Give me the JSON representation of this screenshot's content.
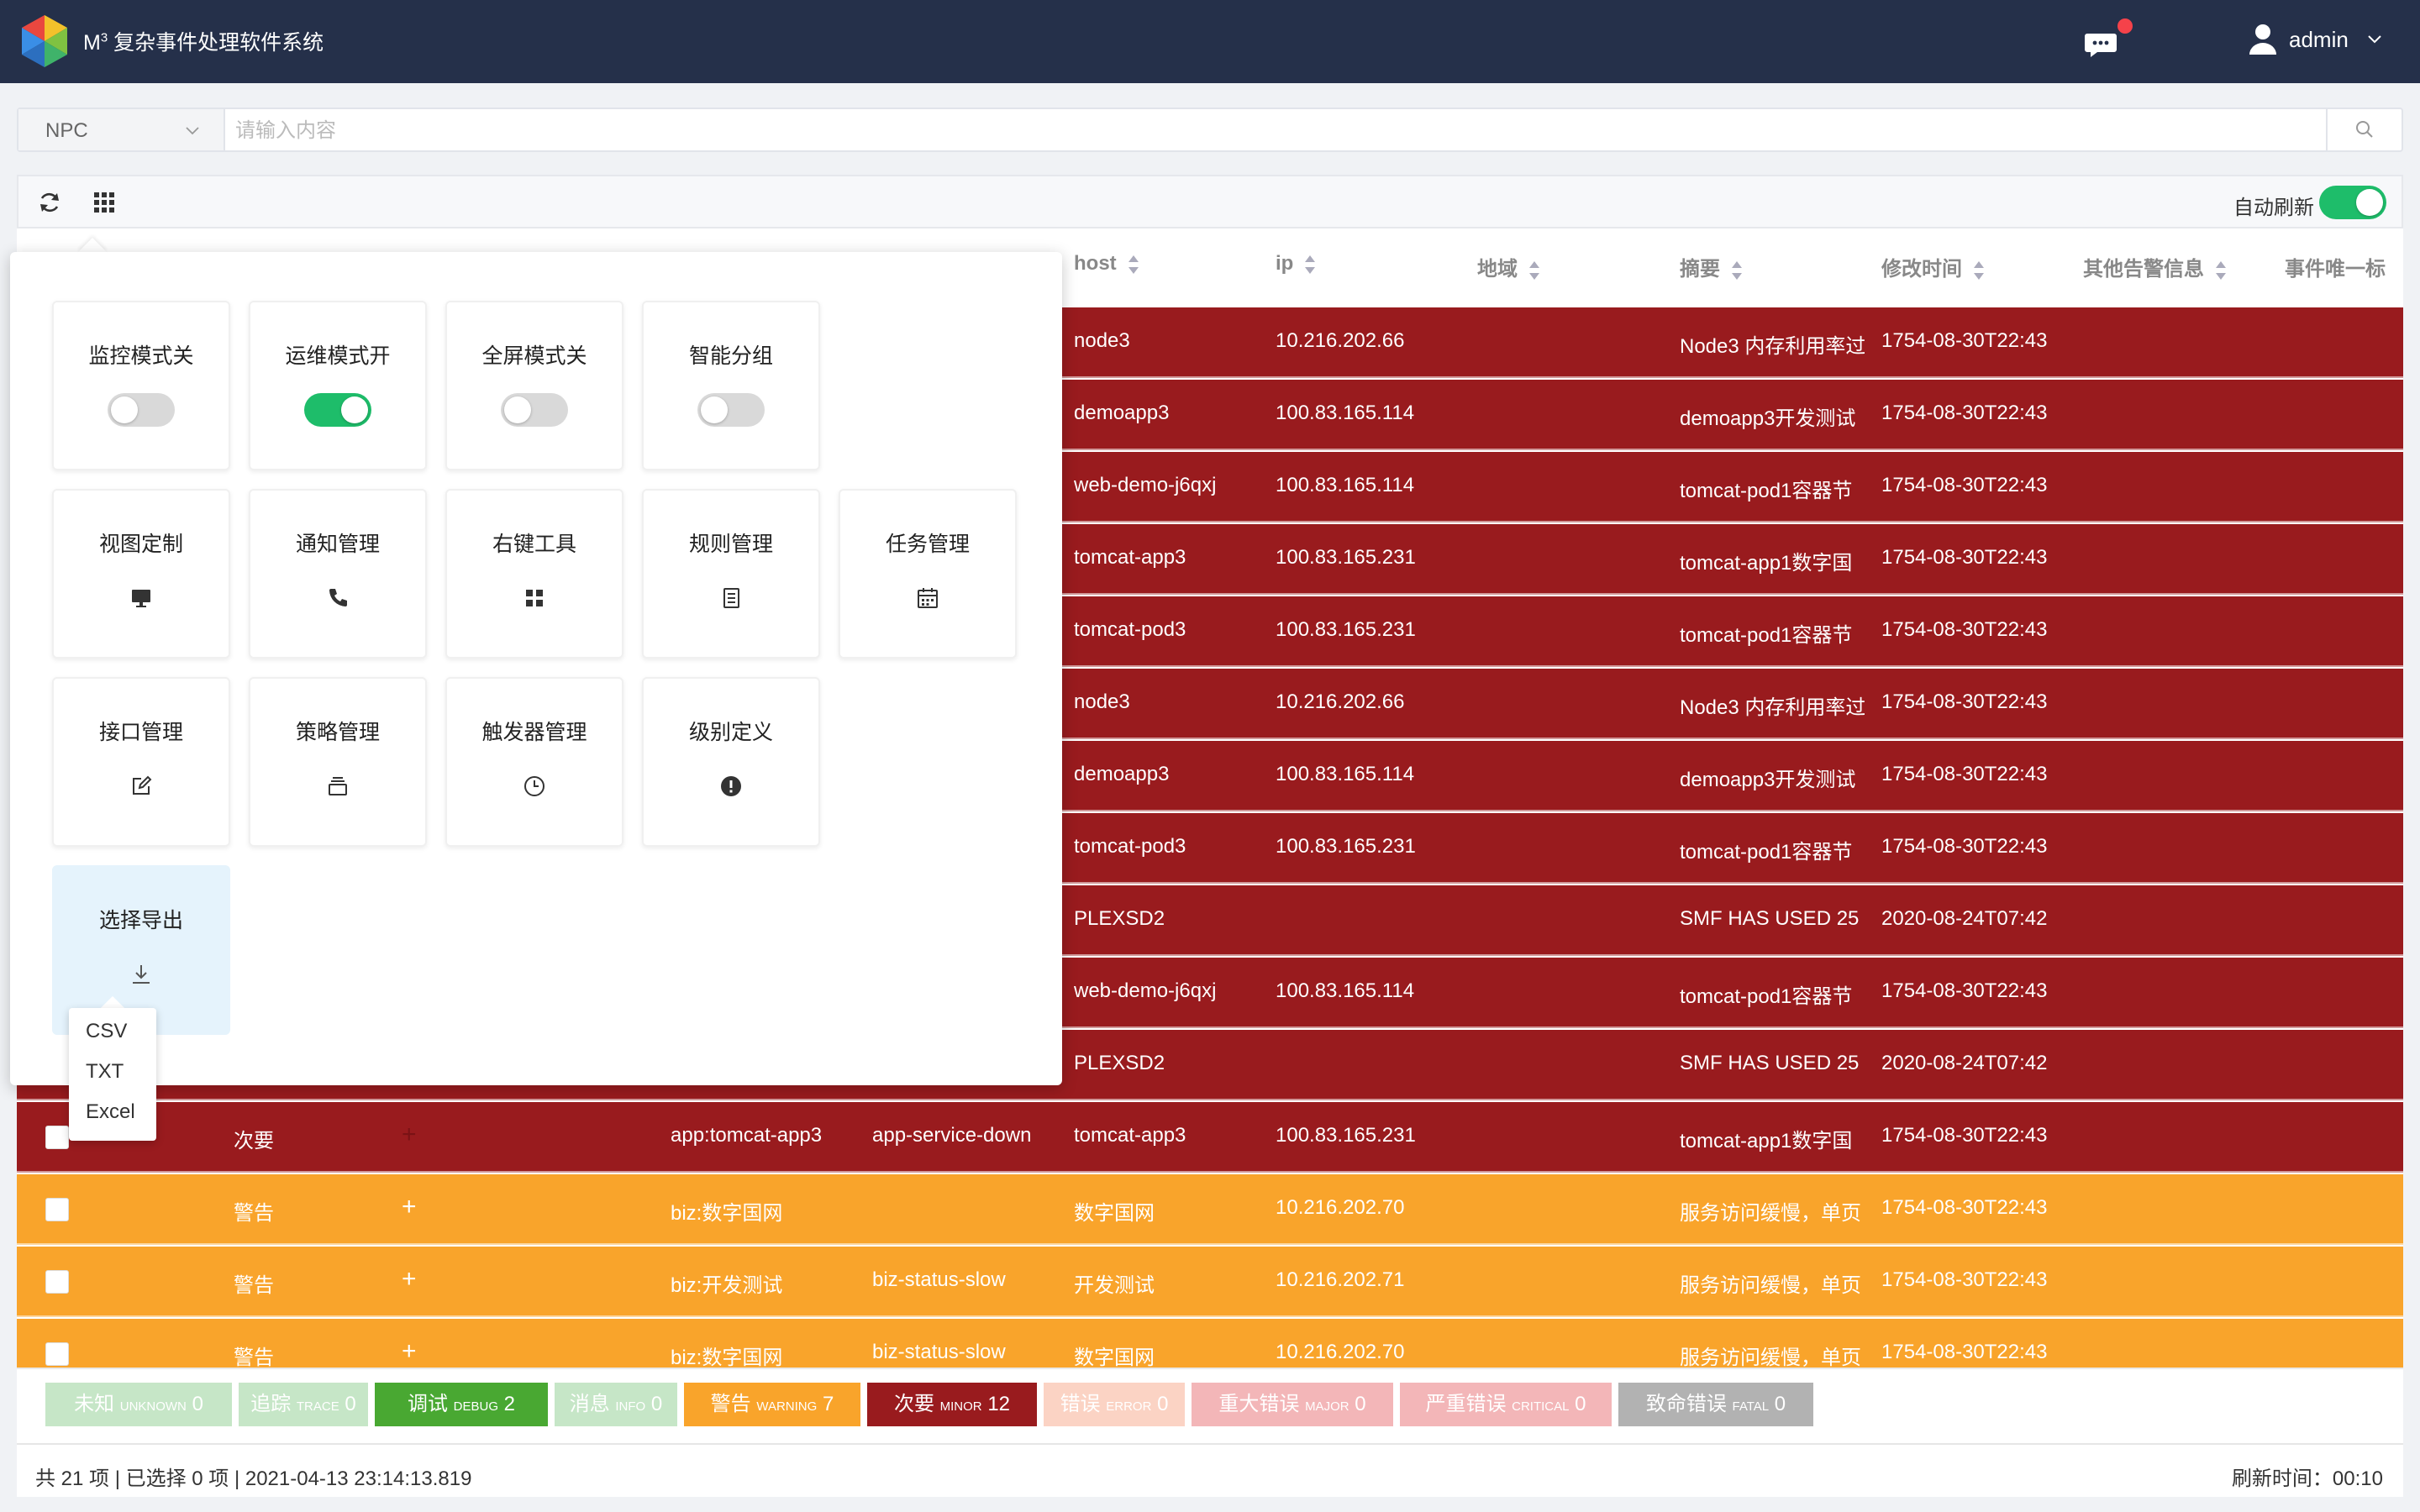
{
  "app": {
    "title_prefix": "M",
    "title_sup": "3",
    "title": " 复杂事件处理软件系统",
    "user": "admin"
  },
  "search": {
    "type": "NPC",
    "placeholder": "请输入内容"
  },
  "toolbar": {
    "auto_refresh_label": "自动刷新",
    "auto_refresh_on": true
  },
  "columns": [
    {
      "label": "host"
    },
    {
      "label": "ip"
    },
    {
      "label": "地域"
    },
    {
      "label": "摘要"
    },
    {
      "label": "修改时间"
    },
    {
      "label": "其他告警信息"
    },
    {
      "label": "事件唯一标"
    }
  ],
  "rows": [
    {
      "level": "",
      "tag": "",
      "type": "",
      "host": "node3",
      "ip": "10.216.202.66",
      "summary": "Node3 内存利用率过",
      "time": "1754-08-30T22:43",
      "class": "minor"
    },
    {
      "level": "",
      "tag": "",
      "type": "",
      "host": "demoapp3",
      "ip": "100.83.165.114",
      "summary": "demoapp3开发测试",
      "time": "1754-08-30T22:43",
      "class": "minor"
    },
    {
      "level": "",
      "tag": "",
      "type": "",
      "host": "web-demo-j6qxj",
      "ip": "100.83.165.114",
      "summary": "tomcat-pod1容器节",
      "time": "1754-08-30T22:43",
      "class": "minor"
    },
    {
      "level": "",
      "tag": "",
      "type": "",
      "host": "tomcat-app3",
      "ip": "100.83.165.231",
      "summary": "tomcat-app1数字国",
      "time": "1754-08-30T22:43",
      "class": "minor"
    },
    {
      "level": "",
      "tag": "",
      "type": "",
      "host": "tomcat-pod3",
      "ip": "100.83.165.231",
      "summary": "tomcat-pod1容器节",
      "time": "1754-08-30T22:43",
      "class": "minor"
    },
    {
      "level": "",
      "tag": "",
      "type": "",
      "host": "node3",
      "ip": "10.216.202.66",
      "summary": "Node3 内存利用率过",
      "time": "1754-08-30T22:43",
      "class": "minor"
    },
    {
      "level": "",
      "tag": "",
      "type": "",
      "host": "demoapp3",
      "ip": "100.83.165.114",
      "summary": "demoapp3开发测试",
      "time": "1754-08-30T22:43",
      "class": "minor"
    },
    {
      "level": "",
      "tag": "",
      "type": "",
      "host": "tomcat-pod3",
      "ip": "100.83.165.231",
      "summary": "tomcat-pod1容器节",
      "time": "1754-08-30T22:43",
      "class": "minor"
    },
    {
      "level": "",
      "tag": "",
      "type": "",
      "host": "PLEXSD2",
      "ip": "",
      "summary": "SMF HAS USED 25",
      "time": "2020-08-24T07:42",
      "class": "minor"
    },
    {
      "level": "",
      "tag": "",
      "type": "",
      "host": "web-demo-j6qxj",
      "ip": "100.83.165.114",
      "summary": "tomcat-pod1容器节",
      "time": "1754-08-30T22:43",
      "class": "minor"
    },
    {
      "level": "",
      "tag": "",
      "type": "",
      "host": "PLEXSD2",
      "ip": "",
      "summary": "SMF HAS USED 25",
      "time": "2020-08-24T07:42",
      "class": "minor"
    },
    {
      "level": "次要",
      "tag": "app:tomcat-app3",
      "type": "app-service-down",
      "host": "tomcat-app3",
      "ip": "100.83.165.231",
      "summary": "tomcat-app1数字国",
      "time": "1754-08-30T22:43",
      "class": "minor"
    },
    {
      "level": "警告",
      "tag": "biz:数字国网",
      "type": "",
      "host": "数字国网",
      "ip": "10.216.202.70",
      "summary": "服务访问缓慢，单页",
      "time": "1754-08-30T22:43",
      "class": "warning"
    },
    {
      "level": "警告",
      "tag": "biz:开发测试",
      "type": "biz-status-slow",
      "host": "开发测试",
      "ip": "10.216.202.71",
      "summary": "服务访问缓慢，单页",
      "time": "1754-08-30T22:43",
      "class": "warning"
    },
    {
      "level": "警告",
      "tag": "biz:数字国网",
      "type": "biz-status-slow",
      "host": "数字国网",
      "ip": "10.216.202.70",
      "summary": "服务访问缓慢，单页",
      "time": "1754-08-30T22:43",
      "class": "warning"
    }
  ],
  "panel": {
    "toggles": [
      {
        "label": "监控模式关",
        "on": false
      },
      {
        "label": "运维模式开",
        "on": true
      },
      {
        "label": "全屏模式关",
        "on": false
      },
      {
        "label": "智能分组",
        "on": false
      }
    ],
    "tools": [
      {
        "label": "视图定制",
        "icon": "monitor-icon"
      },
      {
        "label": "通知管理",
        "icon": "phone-icon"
      },
      {
        "label": "右键工具",
        "icon": "apps-icon"
      },
      {
        "label": "规则管理",
        "icon": "document-icon"
      },
      {
        "label": "任务管理",
        "icon": "calendar-icon"
      },
      {
        "label": "接口管理",
        "icon": "edit-icon"
      },
      {
        "label": "策略管理",
        "icon": "stack-icon"
      },
      {
        "label": "触发器管理",
        "icon": "clock-icon"
      },
      {
        "label": "级别定义",
        "icon": "alert-icon"
      },
      {
        "label": "选择导出",
        "icon": "download-icon"
      }
    ],
    "export_options": [
      "CSV",
      "TXT",
      "Excel"
    ]
  },
  "legend": [
    {
      "cn": "未知",
      "en": "UNKNOWN",
      "count": "0",
      "color": "#c6e6c7",
      "text": "#ffffff"
    },
    {
      "cn": "追踪",
      "en": "TRACE",
      "count": "0",
      "color": "#c6e6c7",
      "text": "#ffffff"
    },
    {
      "cn": "调试",
      "en": "DEBUG",
      "count": "2",
      "color": "#49a832",
      "text": "#ffffff"
    },
    {
      "cn": "消息",
      "en": "INFO",
      "count": "0",
      "color": "#c6e6c7",
      "text": "#ffffff"
    },
    {
      "cn": "警告",
      "en": "WARNING",
      "count": "7",
      "color": "#f9a42b",
      "text": "#ffffff"
    },
    {
      "cn": "次要",
      "en": "MINOR",
      "count": "12",
      "color": "#991b1e",
      "text": "#ffffff"
    },
    {
      "cn": "错误",
      "en": "ERROR",
      "count": "0",
      "color": "#fbd3c4",
      "text": "#ffffff"
    },
    {
      "cn": "重大错误",
      "en": "MAJOR",
      "count": "0",
      "color": "#f3b6b8",
      "text": "#ffffff"
    },
    {
      "cn": "严重错误",
      "en": "CRITICAL",
      "count": "0",
      "color": "#f3b6b8",
      "text": "#ffffff"
    },
    {
      "cn": "致命错误",
      "en": "FATAL",
      "count": "0",
      "color": "#b2b2b2",
      "text": "#ffffff"
    }
  ],
  "status": {
    "summary": "共 21 项 | 已选择 0 项 | 2021-04-13 23:14:13.819",
    "refresh": "刷新时间：00:10"
  },
  "colors": {
    "topbar": "#25304a",
    "minor": "#991b1e",
    "warning": "#f9a42b",
    "toggle_on": "#1ebd6a"
  }
}
